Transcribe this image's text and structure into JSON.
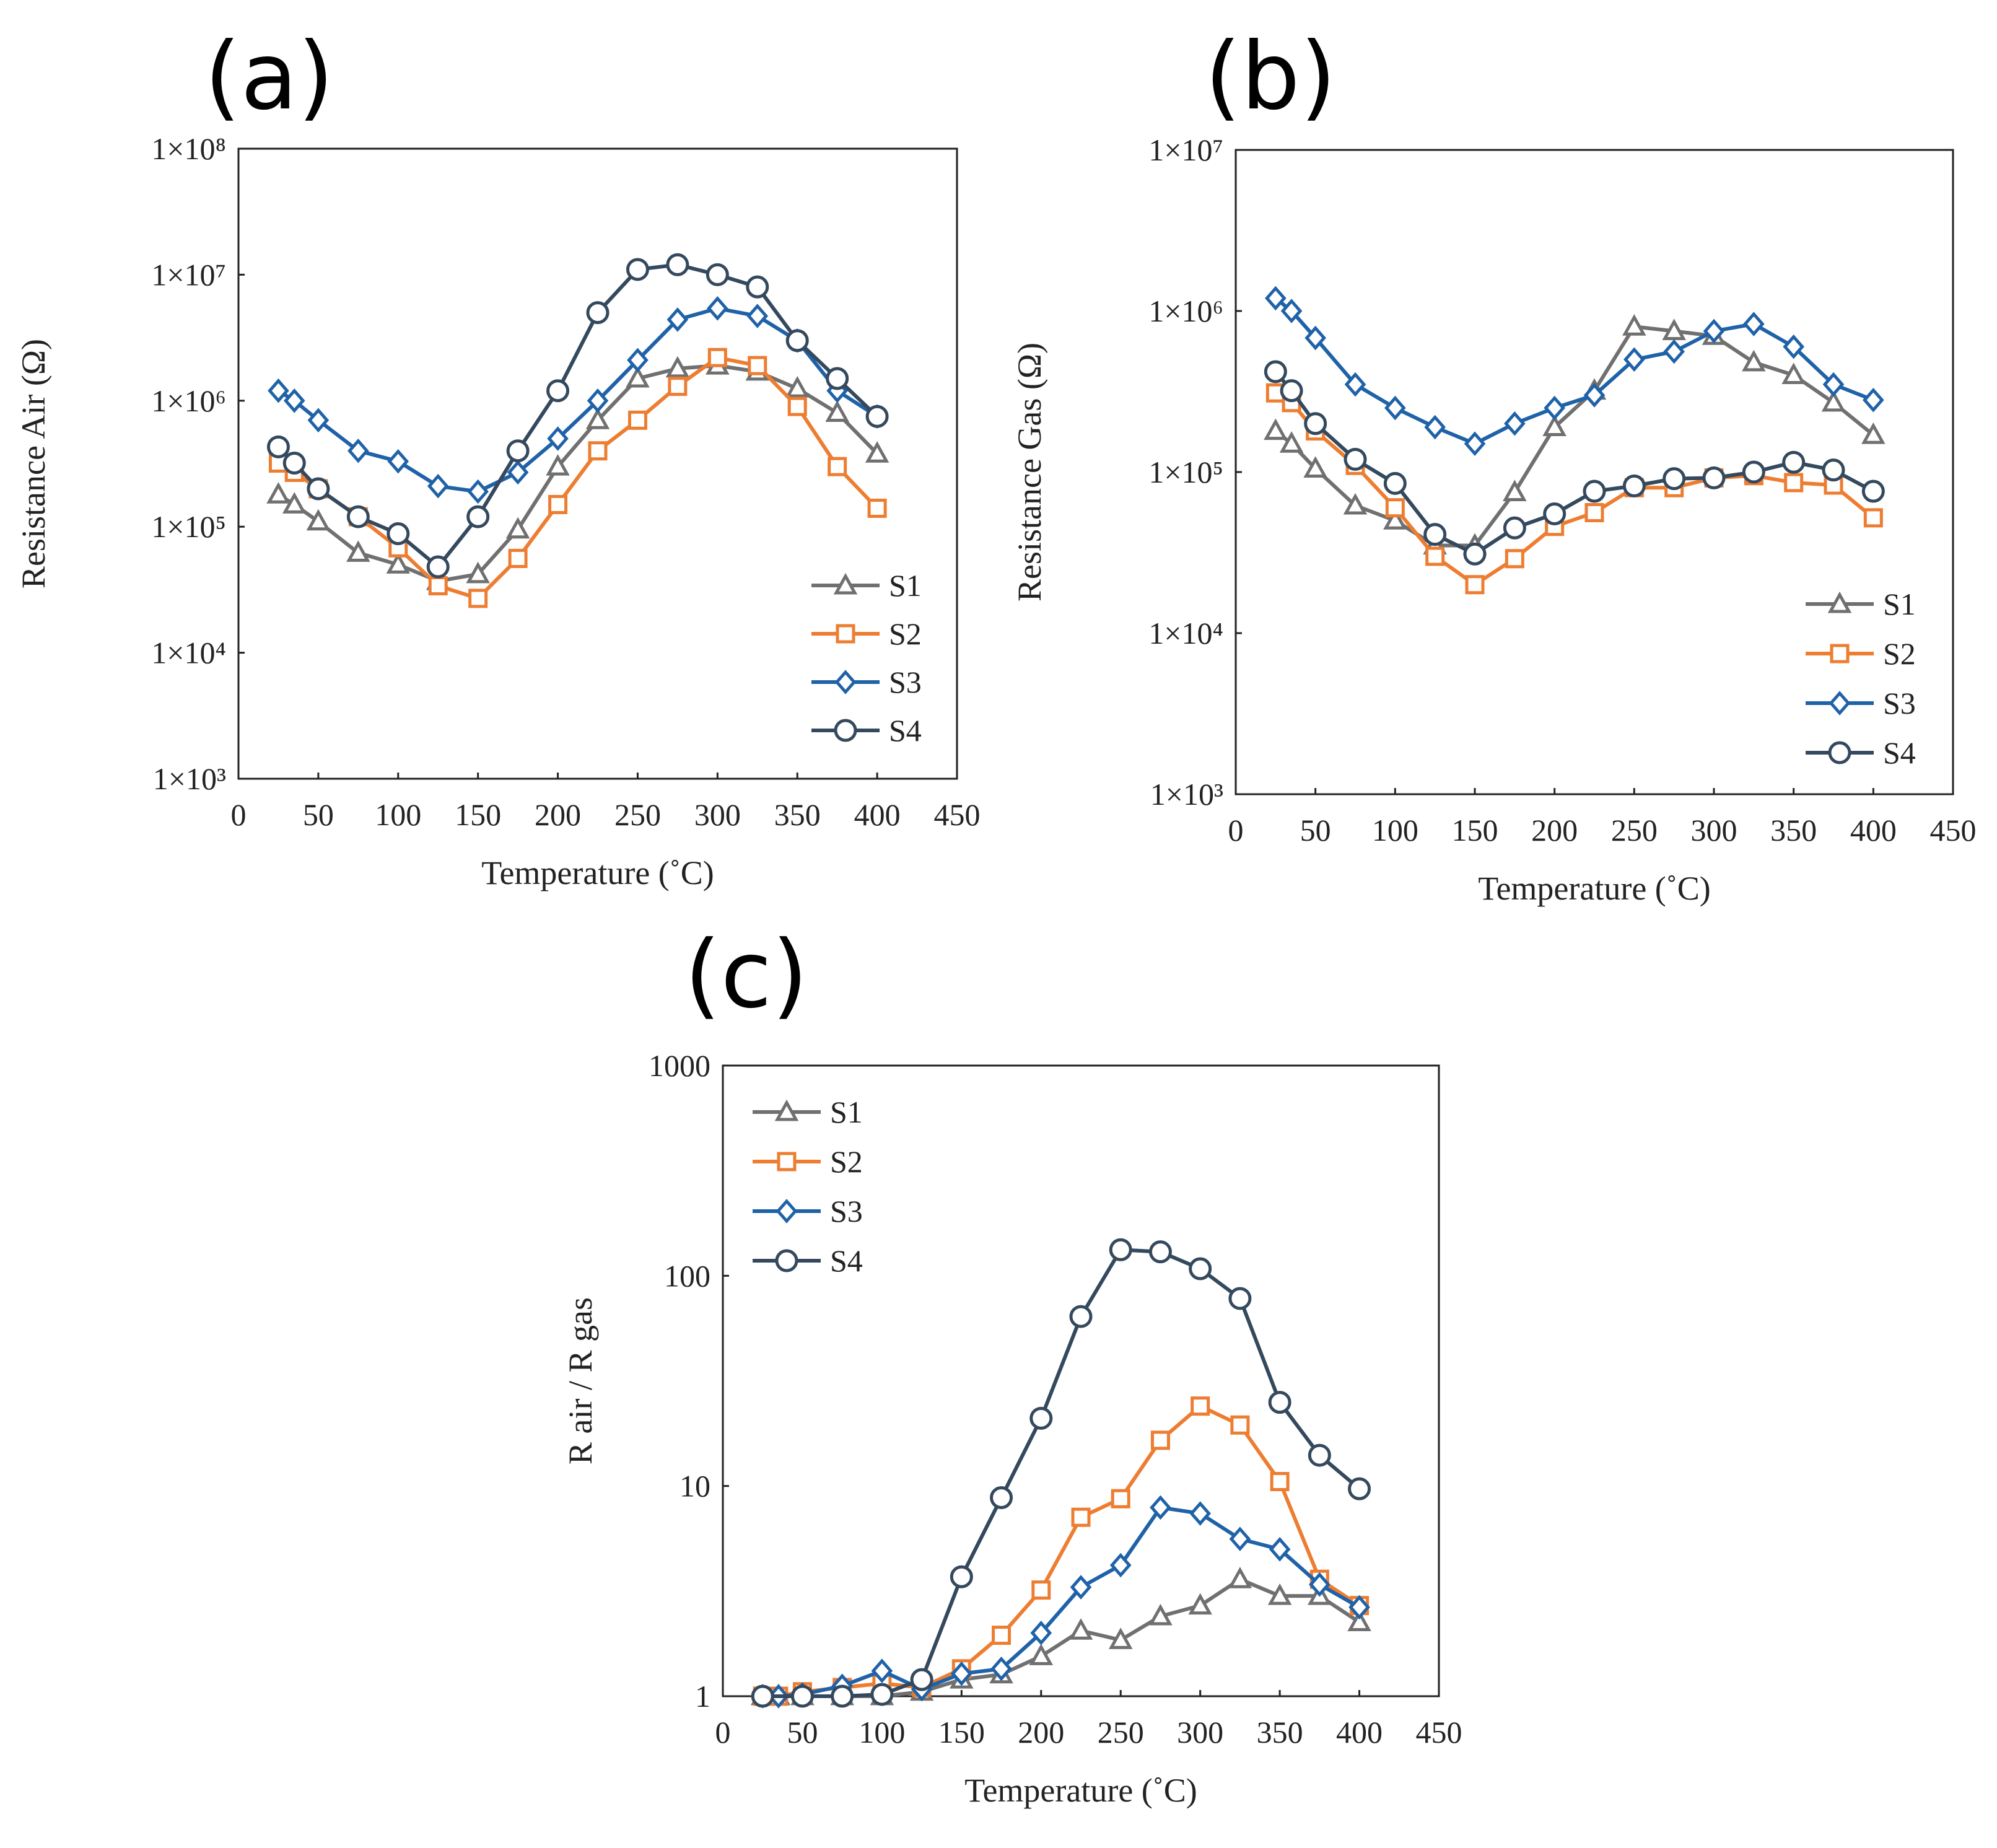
{
  "colors": {
    "S1": "#707070",
    "S2": "#ED7D31",
    "S3": "#1F62A8",
    "S4": "#34495E"
  },
  "markers": {
    "S1": "triangle",
    "S2": "square",
    "S3": "diamond",
    "S4": "circle"
  },
  "chart_data": [
    {
      "id": "a",
      "panel_label": "(a)",
      "type": "line",
      "scale": "log",
      "xlabel": "Temperature (˚C)",
      "ylabel": "Resistance Air  (Ω)",
      "xlim": [
        0,
        450
      ],
      "xticks": [
        0,
        50,
        100,
        150,
        200,
        250,
        300,
        350,
        400,
        450
      ],
      "ylim": [
        1000,
        100000000
      ],
      "yticks": [
        1000,
        10000,
        100000,
        1000000,
        10000000,
        100000000
      ],
      "ytick_labels": [
        "1×10³",
        "1×10⁴",
        "1×10⁵",
        "1×10⁶",
        "1×10⁷",
        "1×10⁸"
      ],
      "legend_position": "bottom-right",
      "series": [
        {
          "name": "S1",
          "x": [
            25,
            35,
            50,
            75,
            100,
            125,
            150,
            175,
            200,
            225,
            250,
            275,
            300,
            325,
            350,
            375,
            400
          ],
          "values": [
            180000,
            150000,
            110000,
            62000,
            50000,
            37000,
            42000,
            95000,
            300000,
            700000,
            1500000,
            1800000,
            1900000,
            1700000,
            1250000,
            800000,
            380000
          ]
        },
        {
          "name": "S2",
          "x": [
            25,
            35,
            50,
            75,
            100,
            125,
            150,
            175,
            200,
            225,
            250,
            275,
            300,
            325,
            350,
            375,
            400
          ],
          "values": [
            320000,
            270000,
            200000,
            120000,
            68000,
            34000,
            27000,
            56000,
            150000,
            400000,
            700000,
            1300000,
            2200000,
            1900000,
            900000,
            300000,
            140000
          ]
        },
        {
          "name": "S3",
          "x": [
            25,
            35,
            50,
            75,
            100,
            125,
            150,
            175,
            200,
            225,
            250,
            275,
            300,
            325,
            350,
            375,
            400
          ],
          "values": [
            1200000,
            1000000,
            700000,
            400000,
            330000,
            210000,
            190000,
            270000,
            500000,
            1000000,
            2100000,
            4400000,
            5400000,
            4700000,
            3000000,
            1200000,
            750000
          ]
        },
        {
          "name": "S4",
          "x": [
            25,
            35,
            50,
            75,
            100,
            125,
            150,
            175,
            200,
            225,
            250,
            275,
            300,
            325,
            350,
            375,
            400
          ],
          "values": [
            430000,
            320000,
            200000,
            120000,
            88000,
            48000,
            120000,
            400000,
            1200000,
            5000000,
            11000000,
            12000000,
            10000000,
            8000000,
            3000000,
            1500000,
            750000
          ]
        }
      ]
    },
    {
      "id": "b",
      "panel_label": "(b)",
      "type": "line",
      "scale": "log",
      "xlabel": "Temperature (˚C)",
      "ylabel": "Resistance Gas  (Ω)",
      "xlim": [
        0,
        450
      ],
      "xticks": [
        0,
        50,
        100,
        150,
        200,
        250,
        300,
        350,
        400,
        450
      ],
      "ylim": [
        1000,
        10000000
      ],
      "yticks": [
        1000,
        10000,
        100000,
        1000000,
        10000000
      ],
      "ytick_labels": [
        "1×10³",
        "1×10⁴",
        "1×10⁵",
        "1×10⁶",
        "1×10⁷"
      ],
      "legend_position": "bottom-right",
      "series": [
        {
          "name": "S1",
          "x": [
            25,
            35,
            50,
            75,
            100,
            125,
            150,
            175,
            200,
            225,
            250,
            275,
            300,
            325,
            350,
            375,
            400
          ],
          "values": [
            180000,
            150000,
            105000,
            62000,
            50000,
            35000,
            35000,
            75000,
            190000,
            320000,
            800000,
            750000,
            700000,
            480000,
            400000,
            270000,
            170000
          ]
        },
        {
          "name": "S2",
          "x": [
            25,
            35,
            50,
            75,
            100,
            125,
            150,
            175,
            200,
            225,
            250,
            275,
            300,
            325,
            350,
            375,
            400
          ],
          "values": [
            310000,
            270000,
            180000,
            110000,
            60000,
            30000,
            20000,
            29000,
            46000,
            56000,
            80000,
            80000,
            92000,
            95000,
            86000,
            83000,
            52000
          ]
        },
        {
          "name": "S3",
          "x": [
            25,
            35,
            50,
            75,
            100,
            125,
            150,
            175,
            200,
            225,
            250,
            275,
            300,
            325,
            350,
            375,
            400
          ],
          "values": [
            1200000,
            1000000,
            680000,
            350000,
            250000,
            190000,
            150000,
            200000,
            250000,
            300000,
            500000,
            560000,
            750000,
            830000,
            600000,
            350000,
            280000
          ]
        },
        {
          "name": "S4",
          "x": [
            25,
            35,
            50,
            75,
            100,
            125,
            150,
            175,
            200,
            225,
            250,
            275,
            300,
            325,
            350,
            375,
            400
          ],
          "values": [
            420000,
            320000,
            200000,
            120000,
            85000,
            41000,
            31000,
            45000,
            55000,
            76000,
            82000,
            91000,
            92000,
            100000,
            115000,
            103000,
            76000
          ]
        }
      ]
    },
    {
      "id": "c",
      "panel_label": "(c)",
      "type": "line",
      "scale": "log",
      "xlabel": "Temperature (˚C)",
      "ylabel": "R air / R gas",
      "xlim": [
        0,
        450
      ],
      "xticks": [
        0,
        50,
        100,
        150,
        200,
        250,
        300,
        350,
        400,
        450
      ],
      "ylim": [
        1,
        1000
      ],
      "yticks": [
        1,
        10,
        100,
        1000
      ],
      "ytick_labels": [
        "1",
        "10",
        "100",
        "1000"
      ],
      "legend_position": "top-left",
      "series": [
        {
          "name": "S1",
          "x": [
            25,
            35,
            50,
            75,
            100,
            125,
            150,
            175,
            200,
            225,
            250,
            275,
            300,
            325,
            350,
            375,
            400
          ],
          "values": [
            1,
            1,
            1,
            1,
            1,
            1.05,
            1.2,
            1.27,
            1.55,
            2.05,
            1.85,
            2.4,
            2.7,
            3.6,
            3.0,
            3.0,
            2.25
          ]
        },
        {
          "name": "S2",
          "x": [
            25,
            35,
            50,
            75,
            100,
            125,
            150,
            175,
            200,
            225,
            250,
            275,
            300,
            325,
            350,
            375,
            400
          ],
          "values": [
            1,
            1,
            1.05,
            1.1,
            1.15,
            1.1,
            1.35,
            1.95,
            3.2,
            7.1,
            8.7,
            16.5,
            24,
            19.5,
            10.5,
            3.6,
            2.7
          ]
        },
        {
          "name": "S3",
          "x": [
            25,
            35,
            50,
            75,
            100,
            125,
            150,
            175,
            200,
            225,
            250,
            275,
            300,
            325,
            350,
            375,
            400
          ],
          "values": [
            1,
            1,
            1.02,
            1.12,
            1.32,
            1.08,
            1.28,
            1.35,
            2.0,
            3.3,
            4.2,
            7.9,
            7.4,
            5.6,
            5.0,
            3.4,
            2.65
          ]
        },
        {
          "name": "S4",
          "x": [
            25,
            50,
            75,
            100,
            125,
            150,
            175,
            200,
            225,
            250,
            275,
            300,
            325,
            350,
            375,
            400
          ],
          "values": [
            1,
            1,
            1,
            1.02,
            1.2,
            3.7,
            8.8,
            21,
            64,
            133,
            130,
            108,
            78,
            25,
            14,
            9.7
          ]
        }
      ]
    }
  ]
}
